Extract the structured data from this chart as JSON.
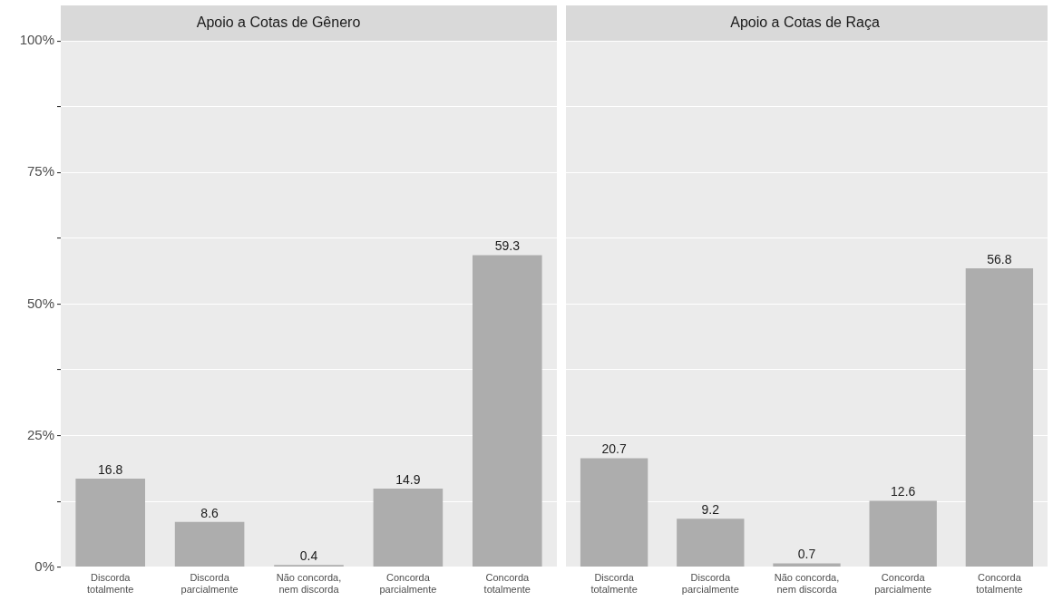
{
  "chart_data": [
    {
      "type": "bar",
      "title": "Apoio a Cotas de Gênero",
      "categories": [
        "Discorda\ntotalmente",
        "Discorda\nparcialmente",
        "Não concorda,\nnem discorda",
        "Concorda\nparcialmente",
        "Concorda\ntotalmente"
      ],
      "values": [
        16.8,
        8.6,
        0.4,
        14.9,
        59.3
      ],
      "color": "#adadad",
      "ylim": [
        0,
        100
      ],
      "yticks": [
        {
          "value": 0,
          "label": "0%"
        },
        {
          "value": 12.5,
          "label": null
        },
        {
          "value": 25,
          "label": "25%"
        },
        {
          "value": 37.5,
          "label": null
        },
        {
          "value": 50,
          "label": "50%"
        },
        {
          "value": 62.5,
          "label": null
        },
        {
          "value": 75,
          "label": "75%"
        },
        {
          "value": 87.5,
          "label": null
        },
        {
          "value": 100,
          "label": "100%"
        }
      ],
      "grid": "y",
      "data_labels": true
    },
    {
      "type": "bar",
      "title": "Apoio a Cotas de Raça",
      "categories": [
        "Discorda\ntotalmente",
        "Discorda\nparcialmente",
        "Não concorda,\nnem discorda",
        "Concorda\nparcialmente",
        "Concorda\ntotalmente"
      ],
      "values": [
        20.7,
        9.2,
        0.7,
        12.6,
        56.8
      ],
      "color": "#adadad",
      "ylim": [
        0,
        100
      ],
      "yticks": [
        {
          "value": 0,
          "label": null
        },
        {
          "value": 12.5,
          "label": null
        },
        {
          "value": 25,
          "label": null
        },
        {
          "value": 37.5,
          "label": null
        },
        {
          "value": 50,
          "label": null
        },
        {
          "value": 62.5,
          "label": null
        },
        {
          "value": 75,
          "label": null
        },
        {
          "value": 87.5,
          "label": null
        },
        {
          "value": 100,
          "label": null
        }
      ],
      "grid": "y",
      "tick_labels": "x",
      "data_labels": true
    }
  ]
}
